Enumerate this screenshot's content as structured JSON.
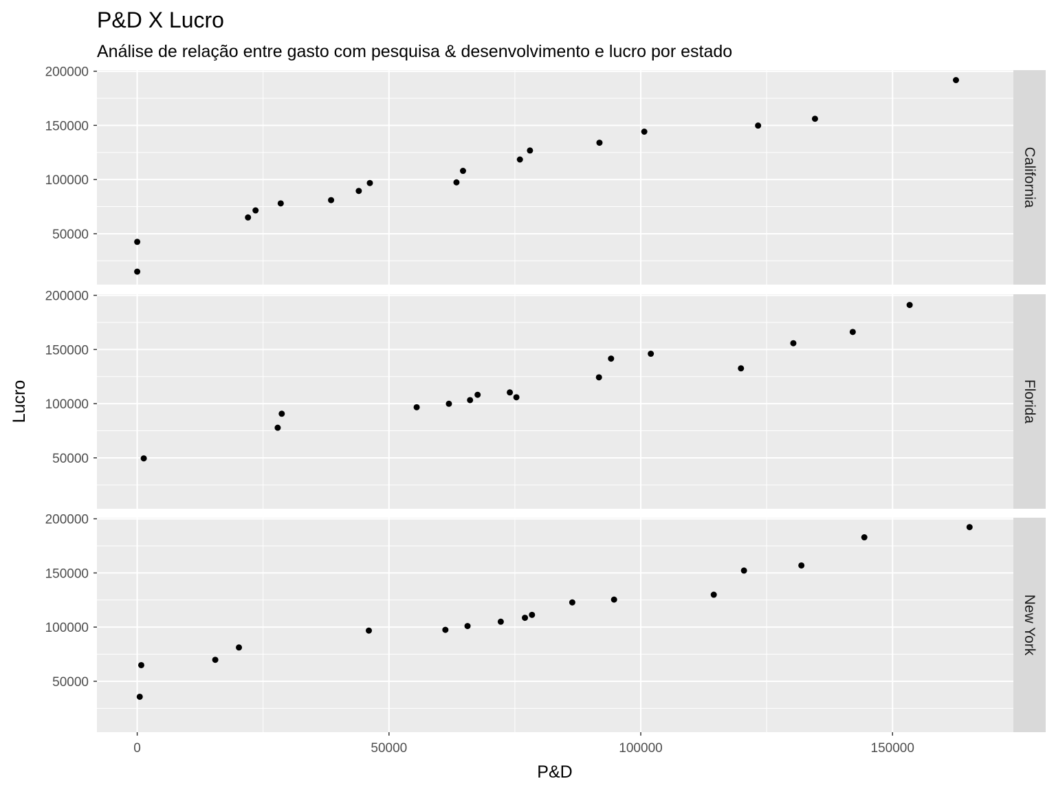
{
  "chart_data": {
    "type": "scatter",
    "title": "P&D X Lucro",
    "subtitle": "Análise de relação entre gasto com pesquisa & desenvolvimento e lucro por estado",
    "xlabel": "P&D",
    "ylabel": "Lucro",
    "xlim": [
      -8000,
      174000
    ],
    "ylim": [
      3000,
      201000
    ],
    "x_ticks": [
      0,
      50000,
      100000,
      150000
    ],
    "x_tick_labels": [
      "0",
      "50000",
      "100000",
      "150000"
    ],
    "y_ticks": [
      50000,
      100000,
      150000,
      200000
    ],
    "y_tick_labels": [
      "50000",
      "100000",
      "150000",
      "200000"
    ],
    "grid": true,
    "facets": [
      {
        "name": "California",
        "points": [
          [
            0,
            42500
          ],
          [
            0,
            15000
          ],
          [
            22000,
            65000
          ],
          [
            23500,
            71500
          ],
          [
            28500,
            78000
          ],
          [
            38500,
            81000
          ],
          [
            44000,
            89500
          ],
          [
            46200,
            96800
          ],
          [
            63400,
            97400
          ],
          [
            64700,
            108000
          ],
          [
            76000,
            118500
          ],
          [
            78000,
            126800
          ],
          [
            91800,
            134000
          ],
          [
            100700,
            144200
          ],
          [
            123300,
            149800
          ],
          [
            134600,
            156100
          ],
          [
            162600,
            191800
          ]
        ]
      },
      {
        "name": "Florida",
        "points": [
          [
            1300,
            49500
          ],
          [
            27900,
            77800
          ],
          [
            28700,
            90700
          ],
          [
            55500,
            96700
          ],
          [
            61900,
            99900
          ],
          [
            66100,
            103300
          ],
          [
            67600,
            108200
          ],
          [
            74000,
            110400
          ],
          [
            75300,
            105900
          ],
          [
            91700,
            124300
          ],
          [
            94100,
            141600
          ],
          [
            102000,
            146100
          ],
          [
            119900,
            132600
          ],
          [
            130300,
            155800
          ],
          [
            142100,
            166200
          ],
          [
            153400,
            191100
          ]
        ]
      },
      {
        "name": "New York",
        "points": [
          [
            800,
            64900
          ],
          [
            500,
            35700
          ],
          [
            15500,
            69800
          ],
          [
            20200,
            81200
          ],
          [
            46000,
            96800
          ],
          [
            61200,
            97500
          ],
          [
            65600,
            101000
          ],
          [
            72200,
            105000
          ],
          [
            77000,
            108600
          ],
          [
            78400,
            111300
          ],
          [
            86400,
            122800
          ],
          [
            94700,
            125400
          ],
          [
            114500,
            129900
          ],
          [
            120500,
            152200
          ],
          [
            131900,
            156900
          ],
          [
            144400,
            182900
          ],
          [
            165300,
            192300
          ]
        ]
      }
    ]
  },
  "colors": {
    "panel_background": "#ebebeb",
    "grid_major": "#ffffff",
    "strip_background": "#d9d9d9",
    "point": "#000000",
    "tick_text": "#4d4d4d"
  }
}
